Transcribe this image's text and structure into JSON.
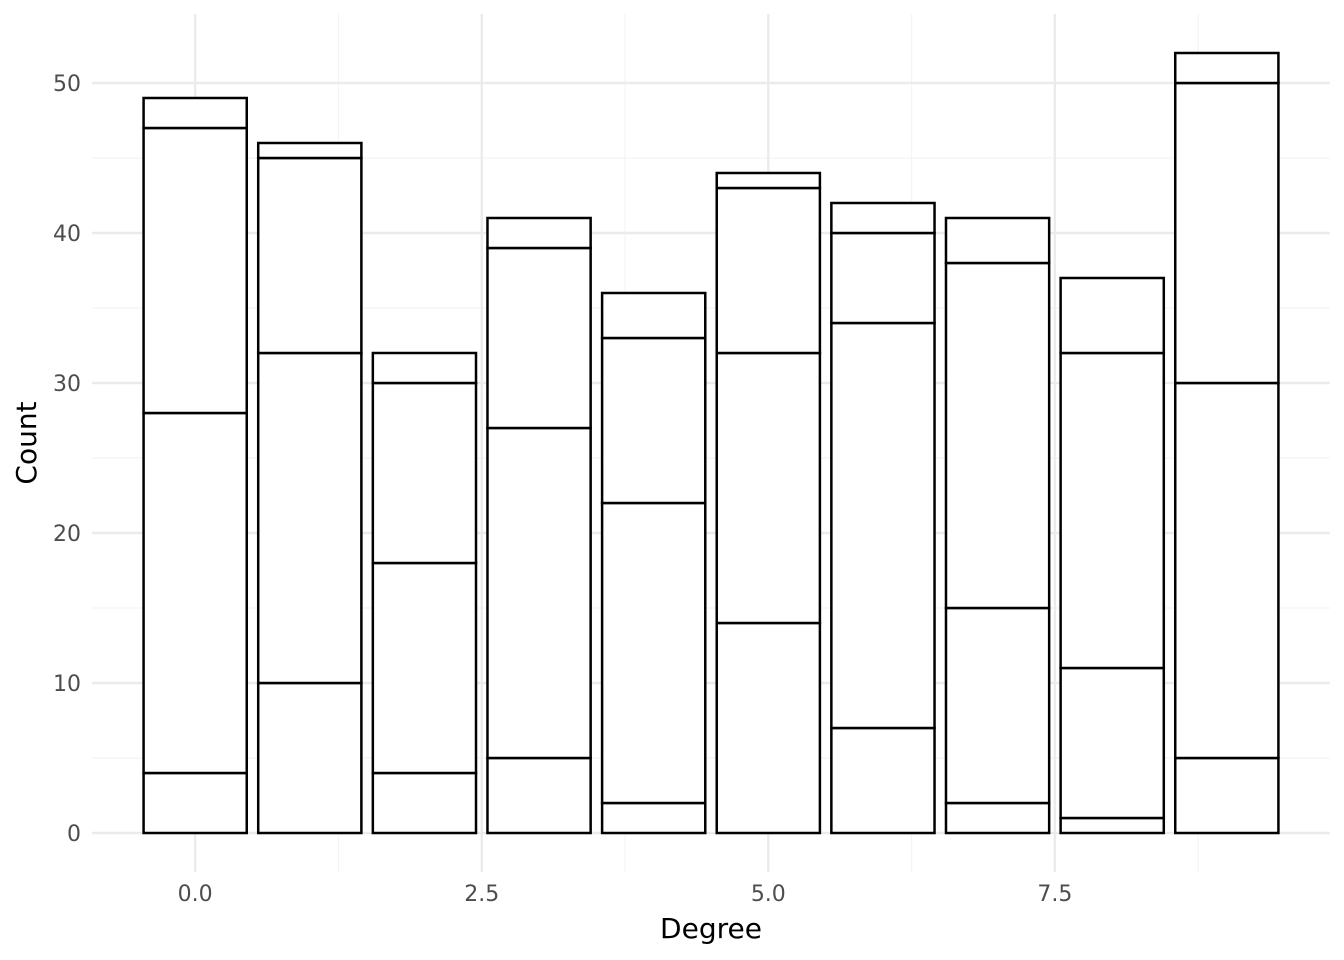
{
  "chart_data": {
    "type": "bar",
    "stacked": true,
    "title": "",
    "xlabel": "Degree",
    "ylabel": "Count",
    "xlim": [
      -0.9,
      9.9
    ],
    "ylim": [
      -2.6,
      54.6
    ],
    "x_ticks": [
      0.0,
      2.5,
      5.0,
      7.5
    ],
    "x_tick_labels": [
      "0.0",
      "2.5",
      "5.0",
      "7.5"
    ],
    "y_ticks": [
      0,
      10,
      20,
      30,
      40,
      50
    ],
    "y_tick_labels": [
      "0",
      "10",
      "20",
      "30",
      "40",
      "50"
    ],
    "grid": true,
    "bar_fill": "#ffffff",
    "bar_outline": "#000000",
    "grid_major_color": "#ebebeb",
    "grid_minor_color": "#f4f4f4",
    "bars": [
      {
        "x": 0,
        "stacks": [
          4,
          24,
          19,
          2,
          0
        ]
      },
      {
        "x": 1,
        "stacks": [
          10,
          22,
          13,
          1,
          0
        ]
      },
      {
        "x": 2,
        "stacks": [
          4,
          14,
          12,
          2,
          0
        ]
      },
      {
        "x": 3,
        "stacks": [
          5,
          22,
          12,
          2,
          0
        ]
      },
      {
        "x": 4,
        "stacks": [
          2,
          20,
          11,
          3,
          0
        ]
      },
      {
        "x": 5,
        "stacks": [
          14,
          18,
          11,
          1,
          0
        ]
      },
      {
        "x": 6,
        "stacks": [
          7,
          27,
          6,
          2,
          0
        ]
      },
      {
        "x": 7,
        "stacks": [
          2,
          13,
          23,
          3,
          0
        ]
      },
      {
        "x": 8,
        "stacks": [
          1,
          10,
          21,
          5,
          0
        ]
      },
      {
        "x": 9,
        "stacks": [
          5,
          25,
          20,
          2,
          0
        ]
      }
    ]
  }
}
